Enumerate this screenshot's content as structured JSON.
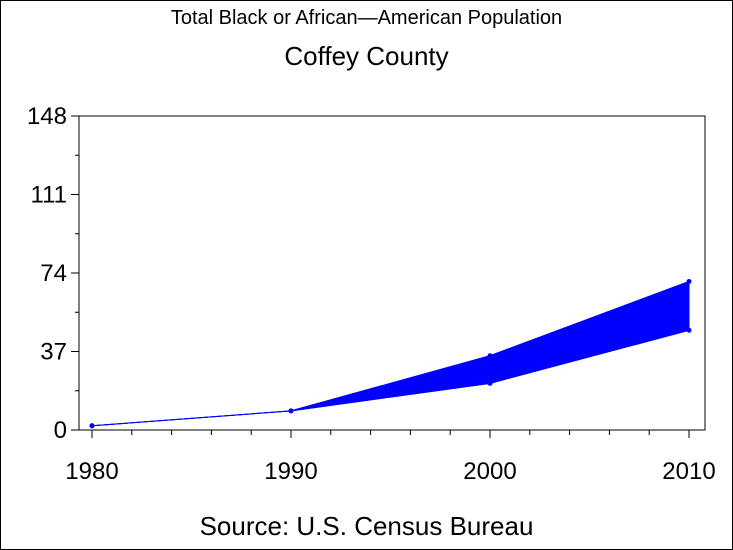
{
  "chart_data": {
    "type": "area",
    "title": "Total Black or African—American Population",
    "subtitle": "Coffey County",
    "source": "Source: U.S. Census Bureau",
    "x": [
      1980,
      1990,
      2000,
      2010
    ],
    "x_ticks": [
      "1980",
      "1990",
      "2000",
      "2010"
    ],
    "y_ticks": [
      "0",
      "37",
      "74",
      "111",
      "148"
    ],
    "ylim": [
      0,
      148
    ],
    "xlim": [
      1980,
      2010
    ],
    "series": [
      {
        "values": [
          2,
          9,
          35,
          70
        ]
      },
      {
        "values": [
          2,
          9,
          22,
          47
        ]
      }
    ],
    "color": "#0000ff",
    "grid": false
  }
}
